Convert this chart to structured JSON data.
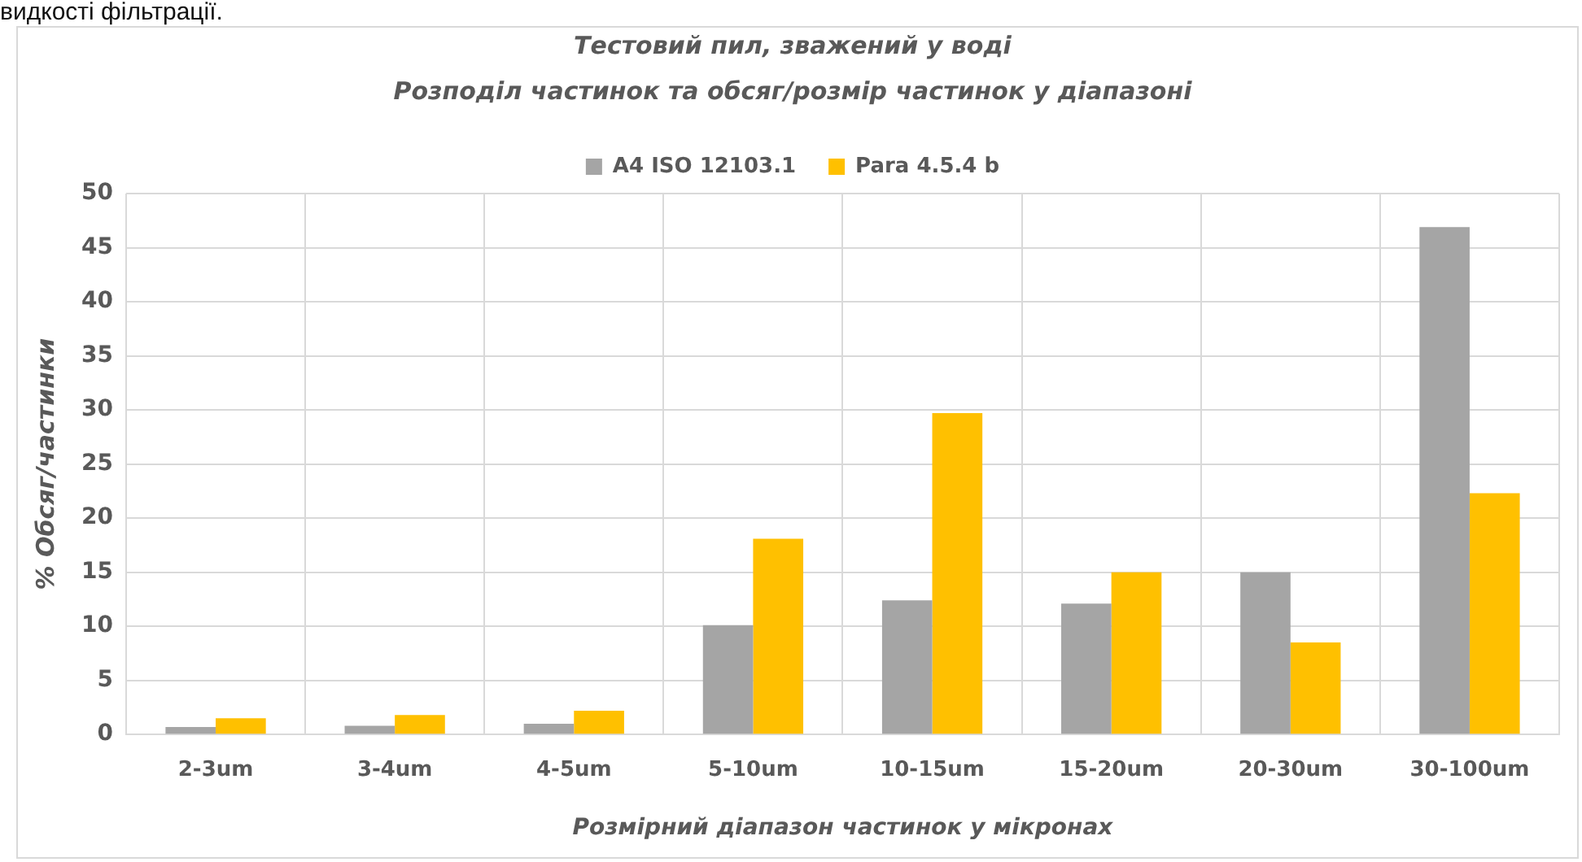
{
  "chart_data": {
    "type": "bar",
    "title": "Тестовий пил, зважений у воді",
    "subtitle": "Розподіл частинок та обсяг/розмір частинок у діапазоні",
    "xlabel": "Розмірний діапазон частинок у мікронах",
    "ylabel": "% Обсяг/частинки",
    "annotations": [
      "видкості фільтрації."
    ],
    "categories": [
      "2-3um",
      "3-4um",
      "4-5um",
      "5-10um",
      "10-15um",
      "15-20um",
      "20-30um",
      "30-100um"
    ],
    "series": [
      {
        "name": "A4 ISO 12103.1",
        "color": "#a5a5a5",
        "values": [
          0.7,
          0.8,
          1.0,
          10.1,
          12.4,
          12.1,
          15.0,
          46.9
        ]
      },
      {
        "name": "Para 4.5.4 b",
        "color": "#ffc000",
        "values": [
          1.5,
          1.8,
          2.2,
          18.1,
          29.7,
          15.0,
          8.5,
          22.3
        ]
      }
    ],
    "ylim": [
      0,
      50
    ],
    "yticks": [
      0,
      5,
      10,
      15,
      20,
      25,
      30,
      35,
      40,
      45,
      50
    ],
    "grid": true,
    "legend": "top"
  }
}
